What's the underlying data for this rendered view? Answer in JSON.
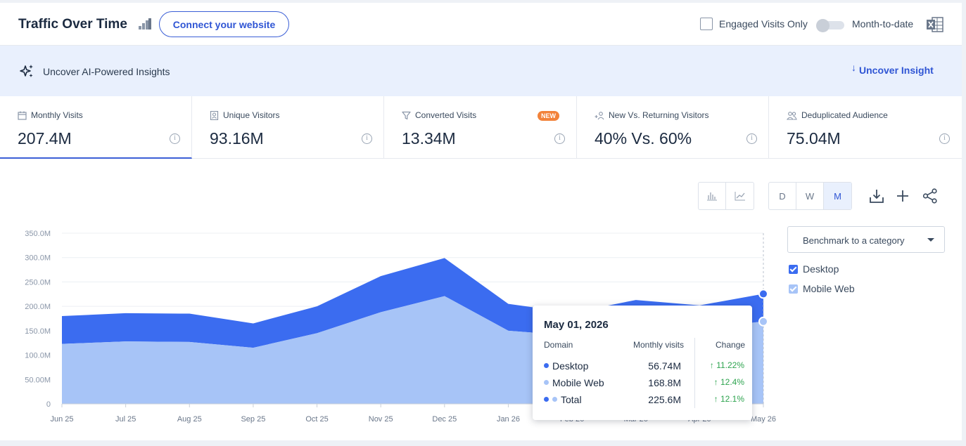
{
  "header": {
    "title": "Traffic Over Time",
    "connect_label": "Connect your website",
    "engaged_label": "Engaged Visits Only",
    "mtd_label": "Month-to-date"
  },
  "insights": {
    "text": "Uncover AI-Powered Insights",
    "link": "Uncover Insight"
  },
  "metrics": [
    {
      "label": "Monthly Visits",
      "value": "207.4M"
    },
    {
      "label": "Unique Visitors",
      "value": "93.16M"
    },
    {
      "label": "Converted Visits",
      "value": "13.34M",
      "badge": "NEW"
    },
    {
      "label": "New Vs. Returning Visitors",
      "value": "40% Vs. 60%"
    },
    {
      "label": "Deduplicated Audience",
      "value": "75.04M"
    }
  ],
  "granularity": {
    "d": "D",
    "w": "W",
    "m": "M",
    "selected": "M"
  },
  "benchmark_label": "Benchmark to a category",
  "colors": {
    "desktop": "#3b6cf0",
    "mobile": "#a7c4f7",
    "accent": "#3b5fd6"
  },
  "tooltip": {
    "date": "May 01, 2026",
    "col_domain": "Domain",
    "col_visits": "Monthly visits",
    "col_change": "Change",
    "rows": [
      {
        "name": "Desktop",
        "value": "56.74M",
        "change": "11.22%"
      },
      {
        "name": "Mobile Web",
        "value": "168.8M",
        "change": "12.4%"
      },
      {
        "name": "Total",
        "value": "225.6M",
        "change": "12.1%"
      }
    ]
  },
  "chart_data": {
    "type": "area",
    "stacked": true,
    "categories": [
      "Jun 25",
      "Jul 25",
      "Aug 25",
      "Sep 25",
      "Oct 25",
      "Nov 25",
      "Dec 25",
      "Jan 26",
      "Feb 26",
      "Mar 26",
      "Apr 26",
      "May 26"
    ],
    "series": [
      {
        "name": "Mobile Web",
        "values": [
          123,
          128,
          127,
          115,
          145,
          188,
          221,
          150,
          140,
          158,
          155,
          168.8
        ]
      },
      {
        "name": "Desktop",
        "values": [
          57,
          58,
          58,
          50,
          55,
          74,
          78,
          55,
          47,
          55,
          47,
          56.74
        ]
      }
    ],
    "yticks": [
      "0",
      "50.00M",
      "100.0M",
      "150.0M",
      "200.0M",
      "250.0M",
      "300.0M",
      "350.0M"
    ],
    "ylim": [
      0,
      350
    ],
    "grid": true,
    "legend": "right"
  }
}
